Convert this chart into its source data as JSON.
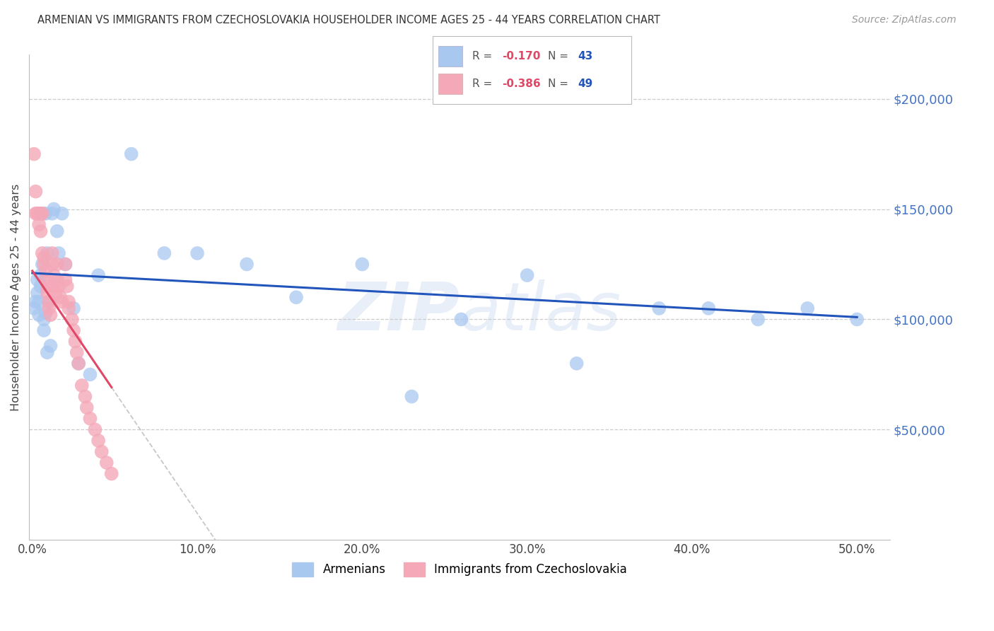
{
  "title": "ARMENIAN VS IMMIGRANTS FROM CZECHOSLOVAKIA HOUSEHOLDER INCOME AGES 25 - 44 YEARS CORRELATION CHART",
  "source": "Source: ZipAtlas.com",
  "ylabel": "Householder Income Ages 25 - 44 years",
  "ylim": [
    0,
    220000
  ],
  "xlim": [
    -0.002,
    0.52
  ],
  "armenian_R": -0.17,
  "armenian_N": 43,
  "czech_R": -0.386,
  "czech_N": 49,
  "armenian_color": "#a8c8f0",
  "czech_color": "#f4a8b8",
  "armenian_line_color": "#2255bb",
  "czech_line_color": "#e04868",
  "armenians_x": [
    0.001,
    0.002,
    0.003,
    0.003,
    0.004,
    0.004,
    0.005,
    0.005,
    0.006,
    0.006,
    0.007,
    0.007,
    0.008,
    0.008,
    0.009,
    0.009,
    0.01,
    0.011,
    0.012,
    0.013,
    0.015,
    0.016,
    0.018,
    0.02,
    0.025,
    0.028,
    0.035,
    0.04,
    0.06,
    0.08,
    0.1,
    0.13,
    0.16,
    0.2,
    0.23,
    0.26,
    0.3,
    0.33,
    0.38,
    0.41,
    0.44,
    0.47,
    0.5
  ],
  "armenians_y": [
    105000,
    108000,
    118000,
    112000,
    102000,
    108000,
    115000,
    120000,
    125000,
    148000,
    100000,
    95000,
    103000,
    148000,
    85000,
    130000,
    108000,
    88000,
    148000,
    150000,
    140000,
    130000,
    148000,
    125000,
    105000,
    80000,
    75000,
    120000,
    175000,
    130000,
    130000,
    125000,
    110000,
    125000,
    65000,
    100000,
    120000,
    80000,
    105000,
    105000,
    100000,
    105000,
    100000
  ],
  "czech_x": [
    0.001,
    0.002,
    0.002,
    0.003,
    0.003,
    0.004,
    0.004,
    0.005,
    0.005,
    0.006,
    0.006,
    0.007,
    0.007,
    0.008,
    0.008,
    0.009,
    0.009,
    0.01,
    0.01,
    0.011,
    0.012,
    0.012,
    0.013,
    0.013,
    0.014,
    0.015,
    0.015,
    0.016,
    0.017,
    0.018,
    0.02,
    0.02,
    0.021,
    0.022,
    0.022,
    0.024,
    0.025,
    0.026,
    0.027,
    0.028,
    0.03,
    0.032,
    0.033,
    0.035,
    0.038,
    0.04,
    0.042,
    0.045,
    0.048
  ],
  "czech_y": [
    175000,
    158000,
    148000,
    148000,
    148000,
    148000,
    143000,
    148000,
    140000,
    148000,
    130000,
    128000,
    125000,
    122000,
    118000,
    115000,
    112000,
    108000,
    105000,
    102000,
    130000,
    125000,
    120000,
    115000,
    112000,
    125000,
    118000,
    115000,
    110000,
    108000,
    125000,
    118000,
    115000,
    108000,
    105000,
    100000,
    95000,
    90000,
    85000,
    80000,
    70000,
    65000,
    60000,
    55000,
    50000,
    45000,
    40000,
    35000,
    30000
  ]
}
